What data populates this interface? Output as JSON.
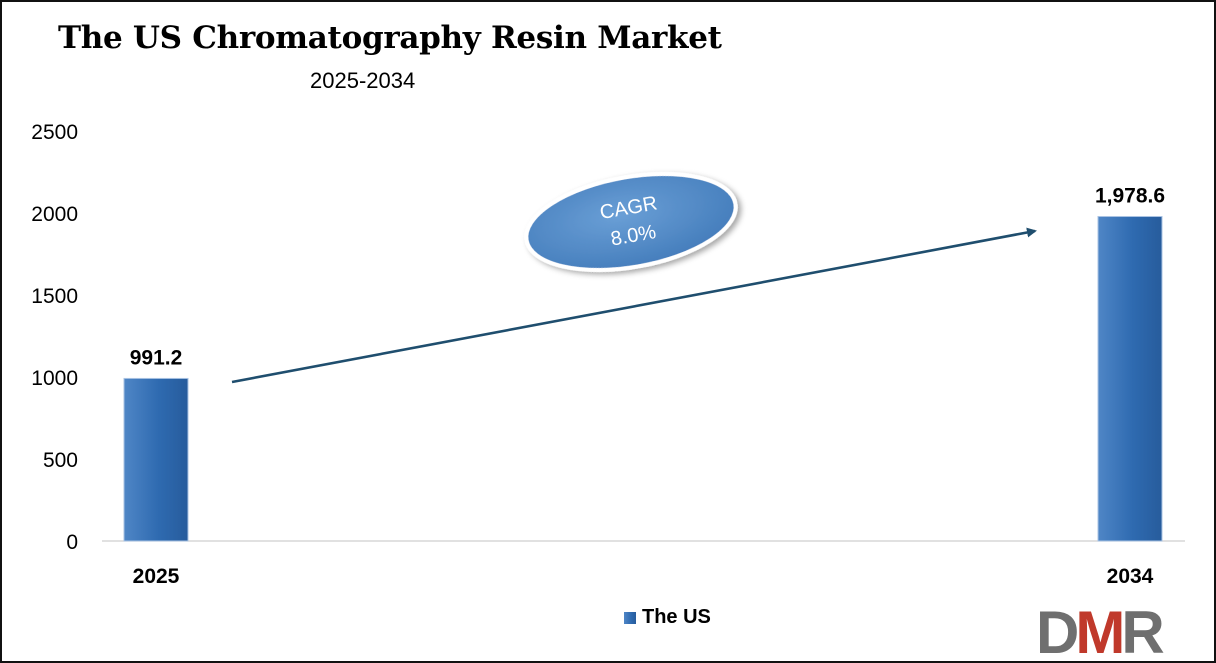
{
  "title": "The US Chromatography Resin Market",
  "subtitle": "2025-2034",
  "cagr": {
    "label": "CAGR",
    "value": "8.0%"
  },
  "legend": {
    "label": "The US"
  },
  "logo": {
    "text": "DMR"
  },
  "colors": {
    "bar": "#2e6ab0",
    "bar_light": "#4f86c6",
    "bar_dark": "#275c9c",
    "arrow": "#1f4e6e",
    "ellipse": "#4f88c4",
    "logo_gray": "#6f6f6f",
    "logo_red": "#c0392b"
  },
  "chart_data": {
    "type": "bar",
    "categories": [
      "2025",
      "2034"
    ],
    "series": [
      {
        "name": "The US",
        "values": [
          991.2,
          1978.6
        ],
        "data_labels": [
          "991.2",
          "1,978.6"
        ]
      }
    ],
    "yticks": [
      "0",
      "500",
      "1000",
      "1500",
      "2000",
      "2500"
    ],
    "ylim": [
      0,
      2500
    ],
    "grid": false,
    "legend": "bottom-center"
  }
}
